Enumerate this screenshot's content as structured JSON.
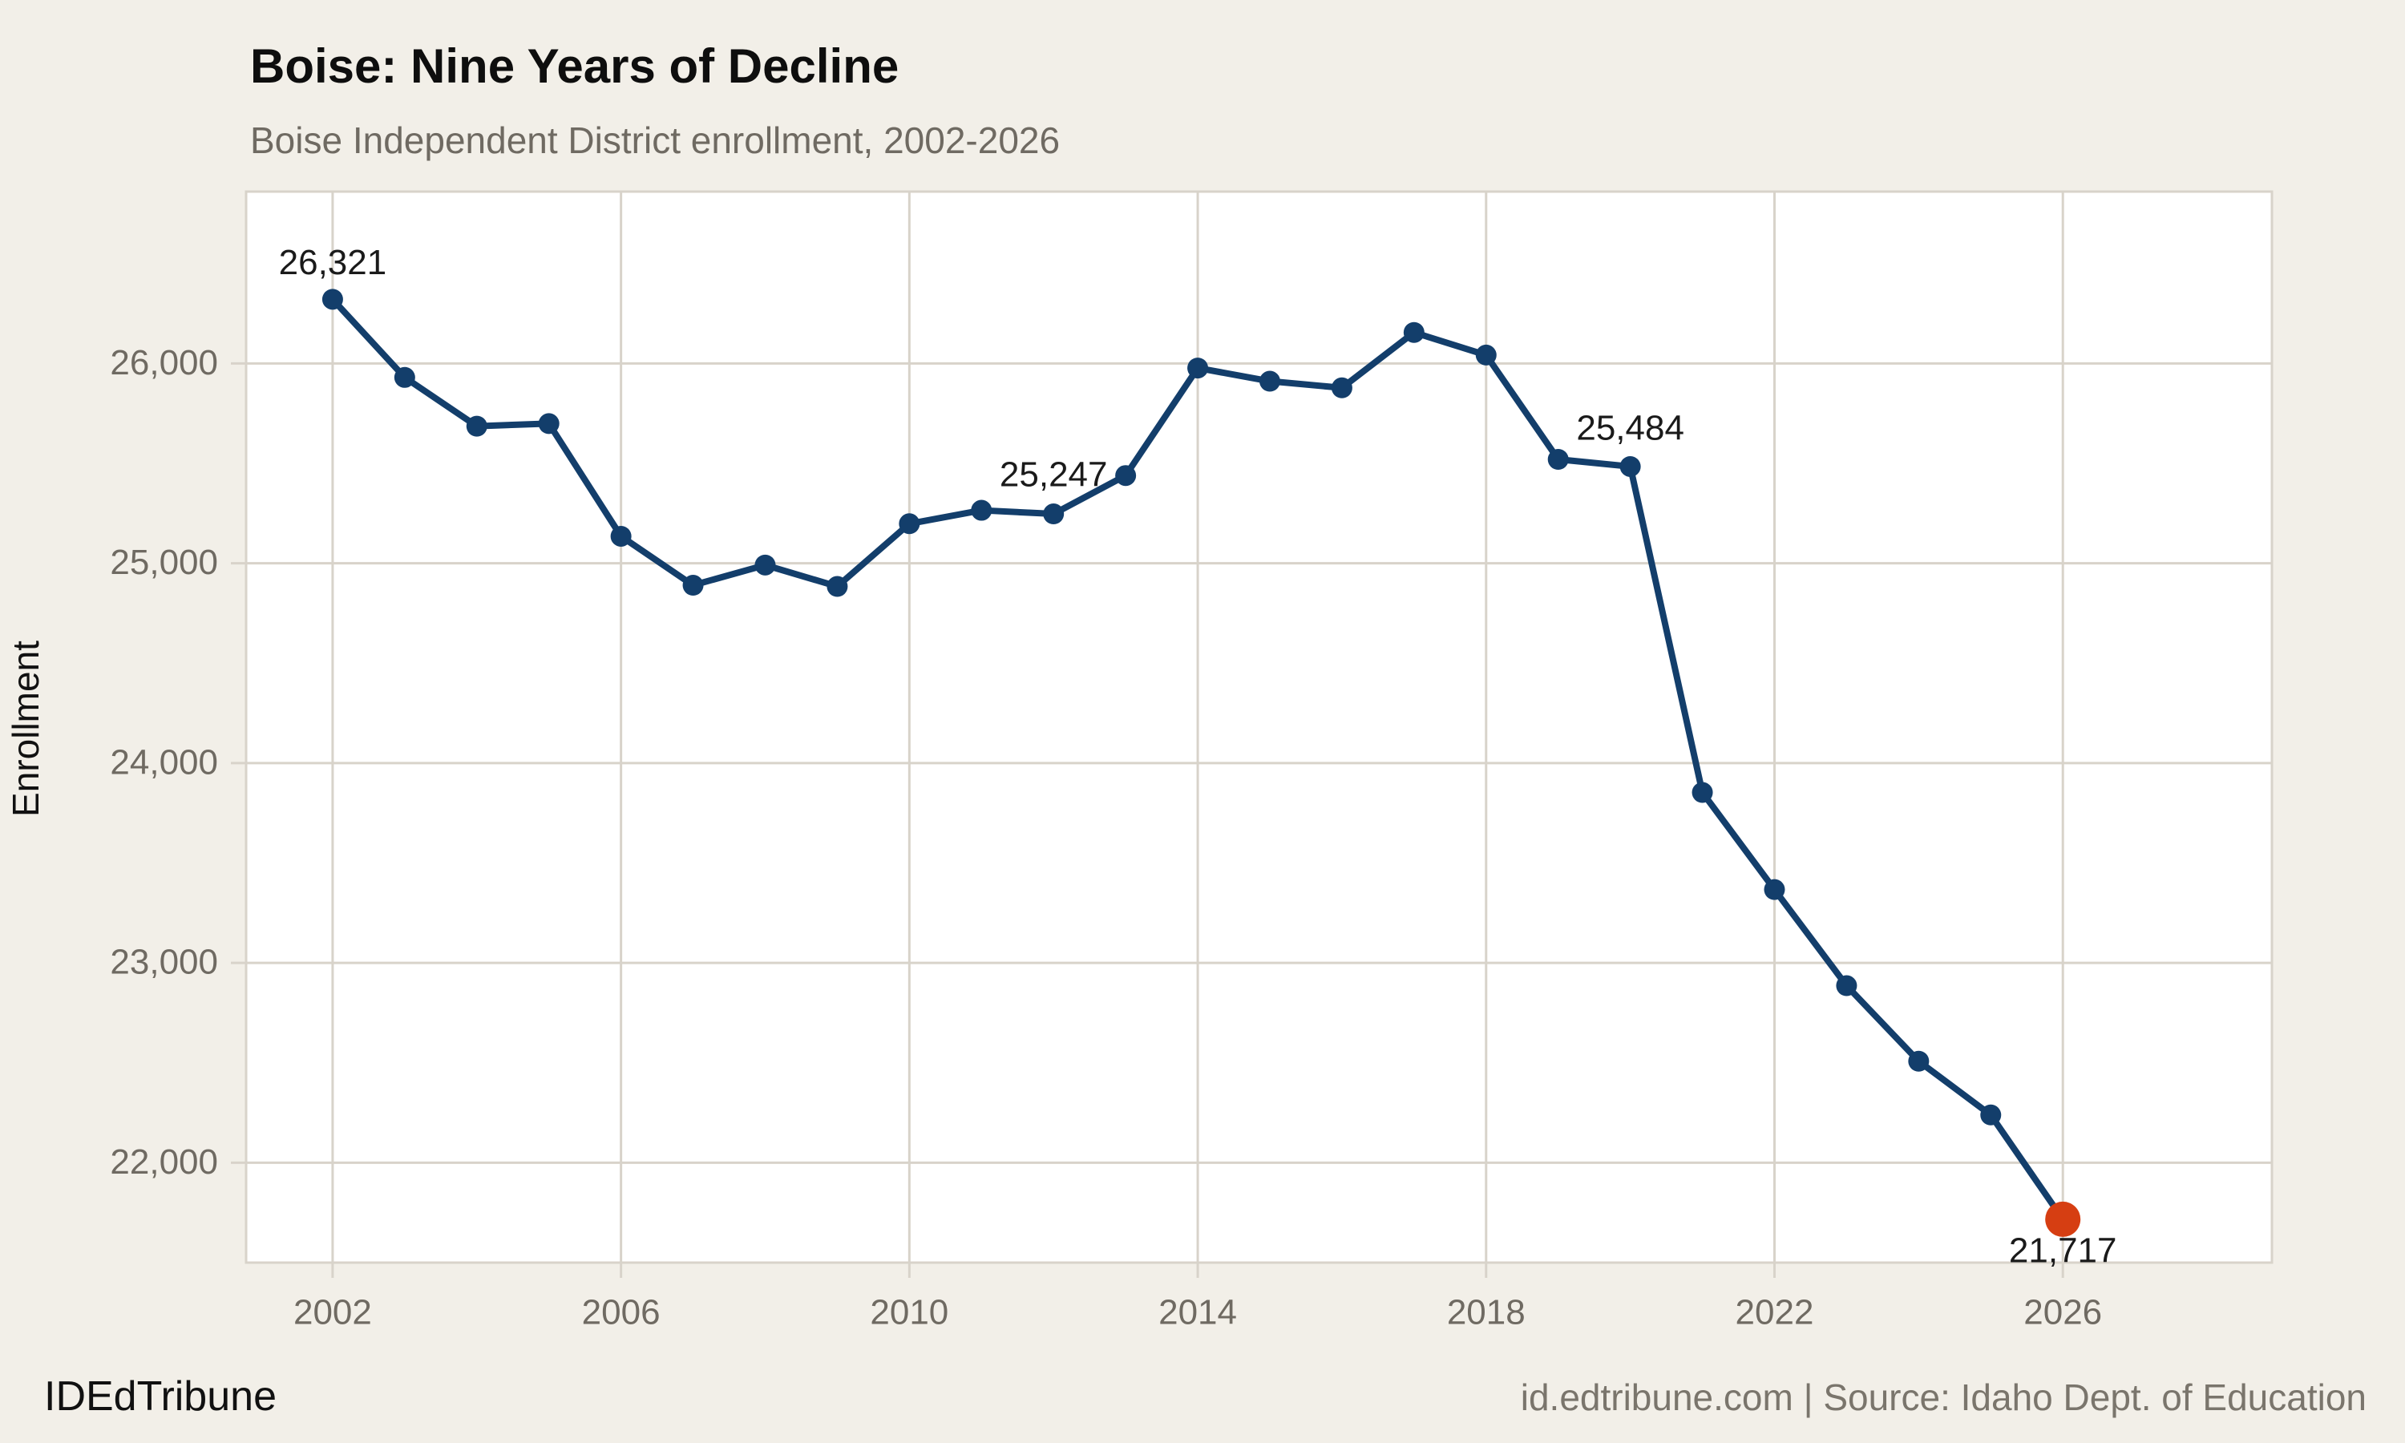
{
  "header": {
    "title": "Boise: Nine Years of Decline",
    "subtitle": "Boise Independent District enrollment, 2002-2026"
  },
  "footer": {
    "brand": "IDEdTribune",
    "attribution": "id.edtribune.com | Source: Idaho Dept. of Education"
  },
  "colors": {
    "background": "#f2efe8",
    "plot_background": "#ffffff",
    "gridline": "#d8d3ca",
    "axis_text": "#6f6a62",
    "line": "#133e6b",
    "highlight": "#d63e12",
    "annotation": "#1a1a1a",
    "title": "#0e0e0e",
    "subtitle": "#6f6a62",
    "footer_right": "#7a756c"
  },
  "chart_data": {
    "type": "line",
    "title": "Boise: Nine Years of Decline",
    "subtitle": "Boise Independent District enrollment, 2002-2026",
    "xlabel": "",
    "ylabel": "Enrollment",
    "x": [
      2002,
      2003,
      2004,
      2005,
      2006,
      2007,
      2008,
      2009,
      2010,
      2011,
      2012,
      2013,
      2014,
      2015,
      2016,
      2017,
      2018,
      2019,
      2020,
      2021,
      2022,
      2023,
      2024,
      2025,
      2026
    ],
    "values": [
      26321,
      25930,
      25686,
      25699,
      25135,
      24890,
      24991,
      24884,
      25198,
      25265,
      25247,
      25439,
      25977,
      25911,
      25878,
      26155,
      26042,
      25520,
      25484,
      23853,
      23367,
      22886,
      22508,
      22239,
      21717
    ],
    "x_ticks": [
      2002,
      2006,
      2010,
      2014,
      2018,
      2022,
      2026
    ],
    "y_ticks": [
      22000,
      23000,
      24000,
      25000,
      26000
    ],
    "xlim": [
      2000.8,
      2028.9
    ],
    "ylim": [
      21500,
      26860
    ],
    "grid": true,
    "legend": "none",
    "highlight_last_point": true,
    "annotations": [
      {
        "year": 2002,
        "value": 26321,
        "label": "26,321",
        "dy": -43
      },
      {
        "year": 2012,
        "value": 25247,
        "label": "25,247",
        "dy": -46
      },
      {
        "year": 2020,
        "value": 25484,
        "label": "25,484",
        "dy": -45
      },
      {
        "year": 2026,
        "value": 21717,
        "label": "21,717",
        "dy": 42
      }
    ]
  }
}
